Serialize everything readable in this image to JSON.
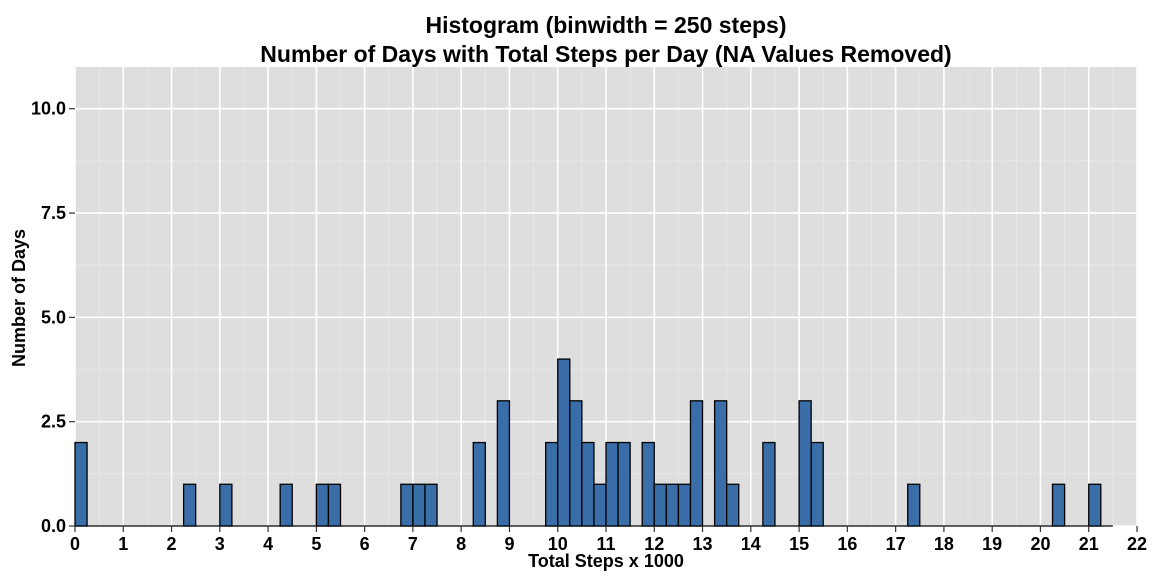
{
  "chart_data": {
    "type": "bar",
    "title": "Histogram (binwidth = 250 steps)",
    "subtitle": "Number of Days with Total Steps per Day (NA Values Removed)",
    "xlabel": "Total Steps x 1000",
    "ylabel": "Number of Days",
    "xlim": [
      0,
      22
    ],
    "ylim": [
      0,
      11
    ],
    "binwidth": 0.25,
    "x_ticks": [
      0,
      1,
      2,
      3,
      4,
      5,
      6,
      7,
      8,
      9,
      10,
      11,
      12,
      13,
      14,
      15,
      16,
      17,
      18,
      19,
      20,
      21,
      22
    ],
    "x_tick_labels": [
      "0",
      "1",
      "2",
      "3",
      "4",
      "5",
      "6",
      "7",
      "8",
      "9",
      "10",
      "11",
      "12",
      "13",
      "14",
      "15",
      "16",
      "17",
      "18",
      "19",
      "20",
      "21",
      "22"
    ],
    "y_ticks": [
      0,
      2.5,
      5,
      7.5,
      10
    ],
    "y_tick_labels": [
      "0.0",
      "2.5",
      "5.0",
      "7.5",
      "10.0"
    ],
    "grid": true,
    "bins": [
      {
        "x0": 0.0,
        "x1": 0.25,
        "count": 2
      },
      {
        "x0": 2.25,
        "x1": 2.5,
        "count": 1
      },
      {
        "x0": 3.0,
        "x1": 3.25,
        "count": 1
      },
      {
        "x0": 4.25,
        "x1": 4.5,
        "count": 1
      },
      {
        "x0": 5.0,
        "x1": 5.25,
        "count": 1
      },
      {
        "x0": 5.25,
        "x1": 5.5,
        "count": 1
      },
      {
        "x0": 6.75,
        "x1": 7.0,
        "count": 1
      },
      {
        "x0": 7.0,
        "x1": 7.25,
        "count": 1
      },
      {
        "x0": 7.25,
        "x1": 7.5,
        "count": 1
      },
      {
        "x0": 8.25,
        "x1": 8.5,
        "count": 2
      },
      {
        "x0": 8.75,
        "x1": 9.0,
        "count": 3
      },
      {
        "x0": 9.75,
        "x1": 10.0,
        "count": 2
      },
      {
        "x0": 10.0,
        "x1": 10.25,
        "count": 4
      },
      {
        "x0": 10.25,
        "x1": 10.5,
        "count": 3
      },
      {
        "x0": 10.5,
        "x1": 10.75,
        "count": 2
      },
      {
        "x0": 10.75,
        "x1": 11.0,
        "count": 1
      },
      {
        "x0": 11.0,
        "x1": 11.25,
        "count": 2
      },
      {
        "x0": 11.25,
        "x1": 11.5,
        "count": 2
      },
      {
        "x0": 11.75,
        "x1": 12.0,
        "count": 2
      },
      {
        "x0": 12.0,
        "x1": 12.25,
        "count": 1
      },
      {
        "x0": 12.25,
        "x1": 12.5,
        "count": 1
      },
      {
        "x0": 12.5,
        "x1": 12.75,
        "count": 1
      },
      {
        "x0": 12.75,
        "x1": 13.0,
        "count": 3
      },
      {
        "x0": 13.25,
        "x1": 13.5,
        "count": 3
      },
      {
        "x0": 13.5,
        "x1": 13.75,
        "count": 1
      },
      {
        "x0": 14.25,
        "x1": 14.5,
        "count": 2
      },
      {
        "x0": 15.0,
        "x1": 15.25,
        "count": 3
      },
      {
        "x0": 15.25,
        "x1": 15.5,
        "count": 2
      },
      {
        "x0": 17.25,
        "x1": 17.5,
        "count": 1
      },
      {
        "x0": 20.25,
        "x1": 20.5,
        "count": 1
      },
      {
        "x0": 21.0,
        "x1": 21.25,
        "count": 1
      }
    ],
    "baseline_range": [
      0,
      21.5
    ],
    "colors": {
      "bar_fill": "#3a6ea8",
      "bar_stroke": "#000000",
      "panel_bg": "#dedede",
      "grid_major": "#ffffff",
      "grid_minor": "#e9e9e9"
    }
  }
}
